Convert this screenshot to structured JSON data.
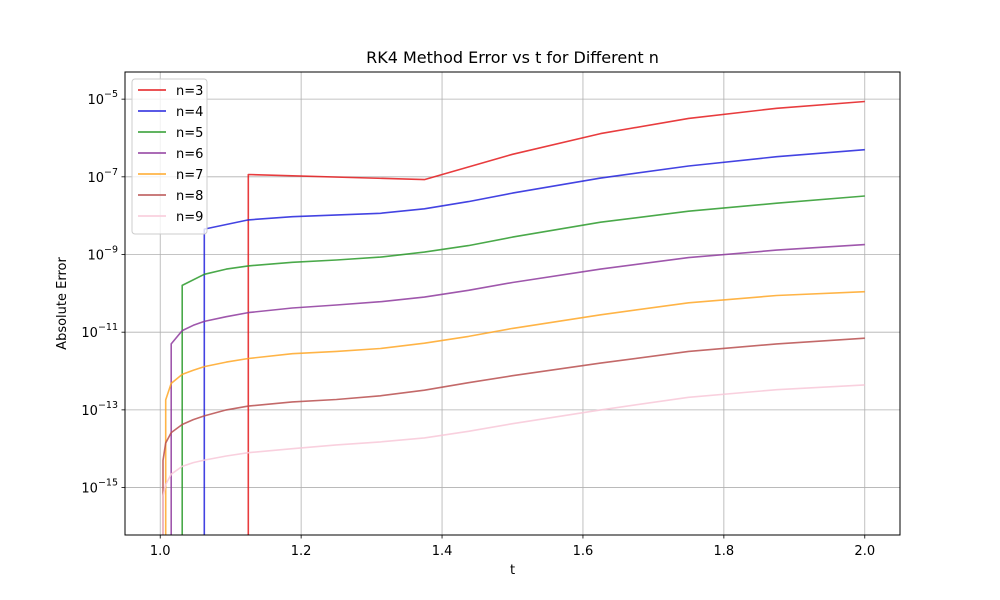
{
  "chart_data": {
    "type": "line",
    "title": "RK4 Method Error vs t for Different n",
    "xlabel": "t",
    "ylabel": "Absolute Error",
    "xlim": [
      0.95,
      2.05
    ],
    "ylim": [
      6e-17,
      5e-05
    ],
    "yscale": "log",
    "grid": true,
    "legend_position": "top-left",
    "x_ticks": [
      1.0,
      1.2,
      1.4,
      1.6,
      1.8,
      2.0
    ],
    "x_tick_labels": [
      "1.0",
      "1.2",
      "1.4",
      "1.6",
      "1.8",
      "2.0"
    ],
    "y_ticks": [
      1e-15,
      1e-13,
      1e-11,
      1e-09,
      1e-07,
      1e-05
    ],
    "y_tick_labels": [
      {
        "base": "10",
        "exp": "−15"
      },
      {
        "base": "10",
        "exp": "−13"
      },
      {
        "base": "10",
        "exp": "−11"
      },
      {
        "base": "10",
        "exp": "−9"
      },
      {
        "base": "10",
        "exp": "−7"
      },
      {
        "base": "10",
        "exp": "−5"
      }
    ],
    "series": [
      {
        "name": "n=3",
        "color": "#e41a1c",
        "x": [
          1.125,
          1.125,
          1.375,
          1.5,
          1.625,
          1.75,
          1.875,
          2.0
        ],
        "y": [
          1e-20,
          1.15e-07,
          8.5e-08,
          3.8e-07,
          1.3e-06,
          3.2e-06,
          5.8e-06,
          8.7e-06
        ]
      },
      {
        "name": "n=4",
        "color": "#2222dd",
        "x": [
          1.0625,
          1.0625,
          1.125,
          1.1875,
          1.3125,
          1.375,
          1.4375,
          1.5,
          1.625,
          1.75,
          1.875,
          2.0
        ],
        "y": [
          1e-20,
          4.5e-09,
          7.8e-09,
          9.4e-09,
          1.15e-08,
          1.5e-08,
          2.3e-08,
          3.8e-08,
          9.3e-08,
          1.9e-07,
          3.3e-07,
          5e-07
        ]
      },
      {
        "name": "n=5",
        "color": "#2a9a2a",
        "x": [
          1.03125,
          1.03125,
          1.0625,
          1.09375,
          1.125,
          1.1875,
          1.25,
          1.3125,
          1.375,
          1.4375,
          1.5,
          1.625,
          1.75,
          1.875,
          2.0
        ],
        "y": [
          1e-20,
          1.6e-10,
          3.1e-10,
          4.2e-10,
          5.1e-10,
          6.3e-10,
          7.2e-10,
          8.6e-10,
          1.15e-09,
          1.7e-09,
          2.8e-09,
          6.8e-09,
          1.3e-08,
          2.1e-08,
          3.2e-08
        ]
      },
      {
        "name": "n=6",
        "color": "#8e3a9e",
        "x": [
          1.015625,
          1.015625,
          1.03125,
          1.046875,
          1.0625,
          1.09375,
          1.125,
          1.1875,
          1.25,
          1.3125,
          1.375,
          1.4375,
          1.5,
          1.625,
          1.75,
          1.875,
          2.0
        ],
        "y": [
          1e-20,
          5e-12,
          1.1e-11,
          1.5e-11,
          1.9e-11,
          2.5e-11,
          3.2e-11,
          4.2e-11,
          5e-11,
          6.1e-11,
          8e-11,
          1.2e-10,
          1.9e-10,
          4.2e-10,
          8.3e-10,
          1.3e-09,
          1.8e-09
        ]
      },
      {
        "name": "n=7",
        "color": "#ffa726",
        "x": [
          1.0078,
          1.0078,
          1.015625,
          1.03125,
          1.046875,
          1.0625,
          1.09375,
          1.125,
          1.1875,
          1.25,
          1.3125,
          1.375,
          1.4375,
          1.5,
          1.625,
          1.75,
          1.875,
          2.0
        ],
        "y": [
          1e-20,
          1.8e-13,
          4.8e-13,
          8.2e-13,
          1.05e-12,
          1.3e-12,
          1.7e-12,
          2.1e-12,
          2.8e-12,
          3.2e-12,
          3.8e-12,
          5.2e-12,
          7.8e-12,
          1.25e-11,
          2.8e-11,
          5.7e-11,
          8.8e-11,
          1.1e-10
        ]
      },
      {
        "name": "n=8",
        "color": "#b84f4f",
        "x": [
          1.0039,
          1.0039,
          1.0078,
          1.015625,
          1.03125,
          1.046875,
          1.0625,
          1.09375,
          1.125,
          1.1875,
          1.25,
          1.3125,
          1.375,
          1.4375,
          1.5,
          1.625,
          1.75,
          1.875,
          2.0
        ],
        "y": [
          1e-20,
          5e-15,
          1.4e-14,
          2.6e-14,
          4.2e-14,
          5.6e-14,
          7e-14,
          1e-13,
          1.25e-13,
          1.6e-13,
          1.85e-13,
          2.3e-13,
          3.2e-13,
          5e-13,
          7.6e-13,
          1.6e-12,
          3.2e-12,
          5e-12,
          7e-12
        ]
      },
      {
        "name": "n=9",
        "color": "#f8c8d8",
        "x": [
          1.0039,
          1.0039,
          1.0078,
          1.015625,
          1.03125,
          1.046875,
          1.0625,
          1.09375,
          1.125,
          1.1875,
          1.25,
          1.3125,
          1.375,
          1.4375,
          1.5,
          1.625,
          1.75,
          1.875,
          2.0
        ],
        "y": [
          1e-20,
          6e-16,
          1.2e-15,
          2.2e-15,
          3.5e-15,
          4.4e-15,
          5.1e-15,
          6.5e-15,
          7.9e-15,
          1e-14,
          1.25e-14,
          1.5e-14,
          1.9e-14,
          2.8e-14,
          4.4e-14,
          1e-13,
          2.1e-13,
          3.3e-13,
          4.4e-13
        ]
      }
    ]
  }
}
